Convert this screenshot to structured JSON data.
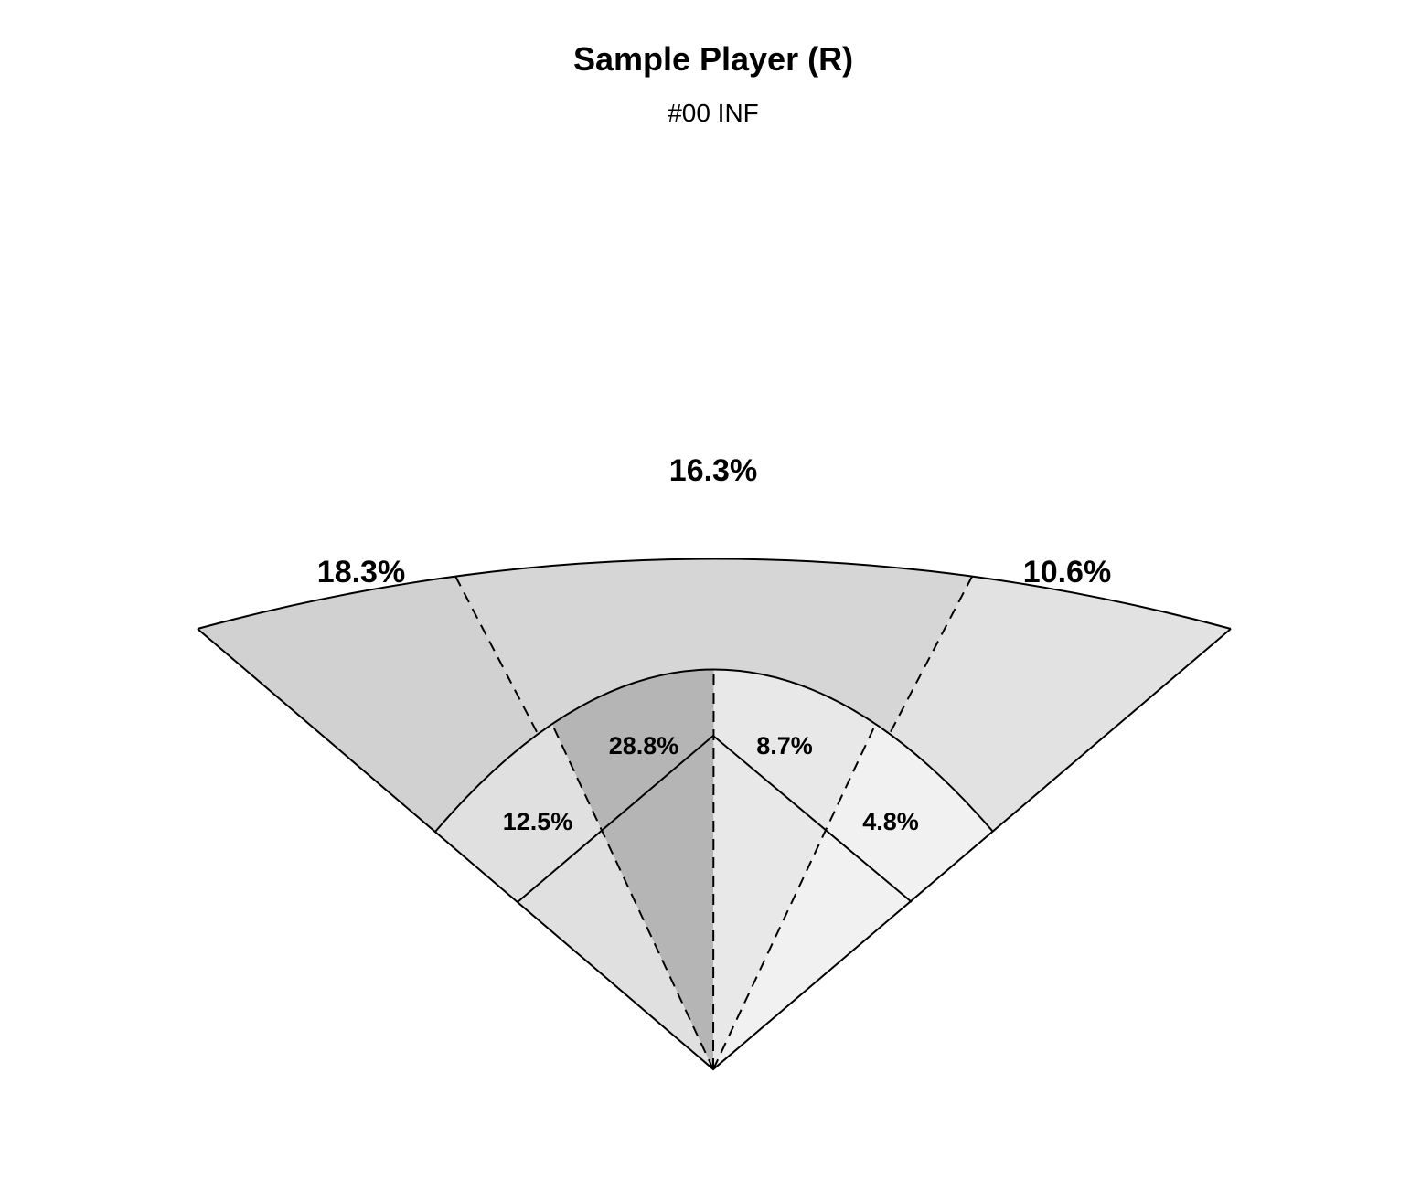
{
  "chart_data": {
    "type": "spray",
    "title": "Sample Player (R)",
    "subtitle": "#00 INF",
    "outfield": [
      {
        "zone": "left",
        "value": 18.3,
        "label": "18.3%",
        "color": "#d1d1d1"
      },
      {
        "zone": "center",
        "value": 16.3,
        "label": "16.3%",
        "color": "#d6d6d6"
      },
      {
        "zone": "right",
        "value": 10.6,
        "label": "10.6%",
        "color": "#e2e2e2"
      }
    ],
    "infield": [
      {
        "zone": "third",
        "value": 12.5,
        "label": "12.5%",
        "color": "#e0e0e0"
      },
      {
        "zone": "short",
        "value": 28.8,
        "label": "28.8%",
        "color": "#b5b5b5"
      },
      {
        "zone": "second",
        "value": 8.7,
        "label": "8.7%",
        "color": "#e8e8e8"
      },
      {
        "zone": "first",
        "value": 4.8,
        "label": "4.8%",
        "color": "#f1f1f1"
      }
    ]
  }
}
